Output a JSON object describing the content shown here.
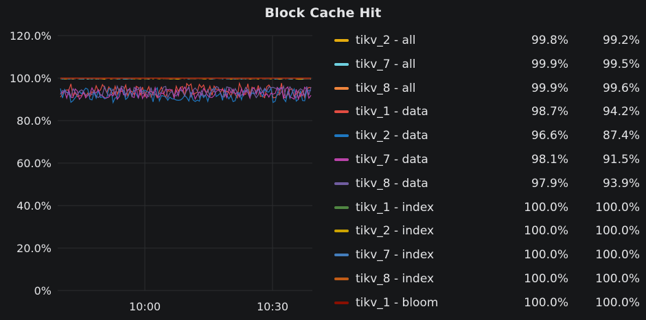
{
  "panel": {
    "title": "Block Cache Hit"
  },
  "chart_data": {
    "type": "line",
    "title": "Block Cache Hit",
    "y_ticks": [
      "120.0%",
      "100.0%",
      "80.0%",
      "60.0%",
      "40.0%",
      "20.0%",
      "0%"
    ],
    "ylim": [
      0,
      120
    ],
    "x_ticks": [
      "10:00",
      "10:30"
    ],
    "grid": true,
    "legend_position": "right",
    "series": [
      {
        "name": "tikv_2 - all",
        "color": "#e5ac0e",
        "level": 99.8,
        "noise": 0.3,
        "v1": "99.8%",
        "v2": "99.2%"
      },
      {
        "name": "tikv_7 - all",
        "color": "#6ed0e0",
        "level": 99.9,
        "noise": 0.3,
        "v1": "99.9%",
        "v2": "99.5%"
      },
      {
        "name": "tikv_8 - all",
        "color": "#ef843c",
        "level": 99.9,
        "noise": 0.2,
        "v1": "99.9%",
        "v2": "99.6%"
      },
      {
        "name": "tikv_1 - data",
        "color": "#e24d42",
        "level": 94.2,
        "noise": 3.5,
        "v1": "98.7%",
        "v2": "94.2%"
      },
      {
        "name": "tikv_2 - data",
        "color": "#1f78c1",
        "level": 92.0,
        "noise": 3.5,
        "v1": "96.6%",
        "v2": "87.4%"
      },
      {
        "name": "tikv_7 - data",
        "color": "#ba43a9",
        "level": 93.0,
        "noise": 3.0,
        "v1": "98.1%",
        "v2": "91.5%"
      },
      {
        "name": "tikv_8 - data",
        "color": "#705da0",
        "level": 93.5,
        "noise": 2.8,
        "v1": "97.9%",
        "v2": "93.9%"
      },
      {
        "name": "tikv_1 - index",
        "color": "#508642",
        "level": 100.0,
        "noise": 0,
        "v1": "100.0%",
        "v2": "100.0%"
      },
      {
        "name": "tikv_2 - index",
        "color": "#cca300",
        "level": 100.0,
        "noise": 0,
        "v1": "100.0%",
        "v2": "100.0%"
      },
      {
        "name": "tikv_7 - index",
        "color": "#447ebc",
        "level": 100.0,
        "noise": 0,
        "v1": "100.0%",
        "v2": "100.0%"
      },
      {
        "name": "tikv_8 - index",
        "color": "#c15c17",
        "level": 100.0,
        "noise": 0,
        "v1": "100.0%",
        "v2": "100.0%"
      },
      {
        "name": "tikv_1 - bloom",
        "color": "#890f02",
        "level": 100.0,
        "noise": 0,
        "v1": "100.0%",
        "v2": "100.0%"
      }
    ]
  }
}
